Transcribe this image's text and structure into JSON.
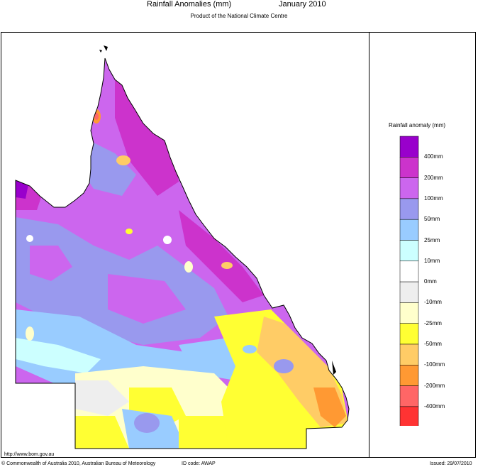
{
  "header": {
    "title": "Rainfall Anomalies (mm)",
    "month": "January 2010",
    "subtitle": "Product of the National Climate Centre"
  },
  "legend": {
    "title": "Rainfall anomaly (mm)",
    "labels": [
      "400mm",
      "200mm",
      "100mm",
      "50mm",
      "25mm",
      "10mm",
      "0mm",
      "-10mm",
      "-25mm",
      "-50mm",
      "-100mm",
      "-200mm",
      "-400mm"
    ],
    "colors": [
      "#9900cc",
      "#cc33cc",
      "#cc66ee",
      "#9999ee",
      "#99ccff",
      "#ccffff",
      "#ffffff",
      "#eeeeee",
      "#ffffcc",
      "#ffff33",
      "#ffcc66",
      "#ff9933",
      "#ff6666",
      "#ff3333"
    ]
  },
  "footer": {
    "url": "http://www.bom.gov.au",
    "copyright": "© Commonwealth of Australia 2010, Australian Bureau of Meteorology",
    "id_code": "ID code: AWAP",
    "issued": "Issued: 29/07/2010"
  }
}
